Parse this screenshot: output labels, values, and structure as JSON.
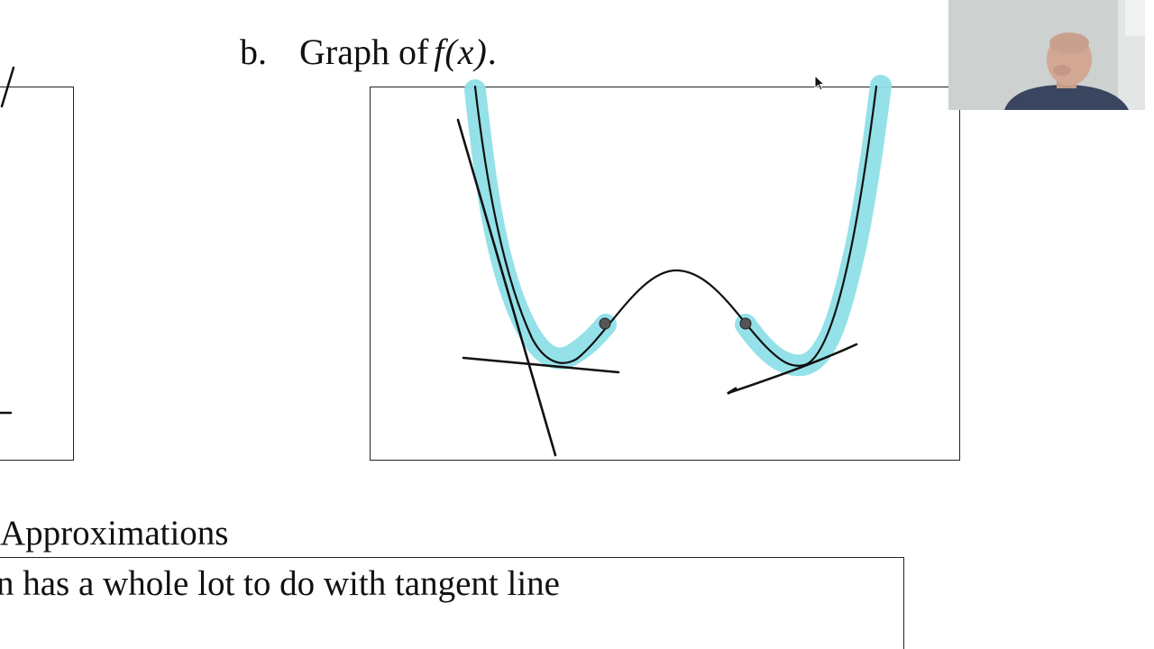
{
  "graph_panel": {
    "label": "b.",
    "title_prefix": "Graph of",
    "function_notation": "f(x)",
    "title_suffix": "."
  },
  "section_heading": "Approximations",
  "body_text": "n has a whole lot to do with tangent line",
  "colors": {
    "highlight": "#8fdfe8",
    "ink": "#111111",
    "point": "#555555"
  },
  "icons": {
    "cursor": "mouse-pointer-icon",
    "webcam": "webcam-presenter"
  }
}
